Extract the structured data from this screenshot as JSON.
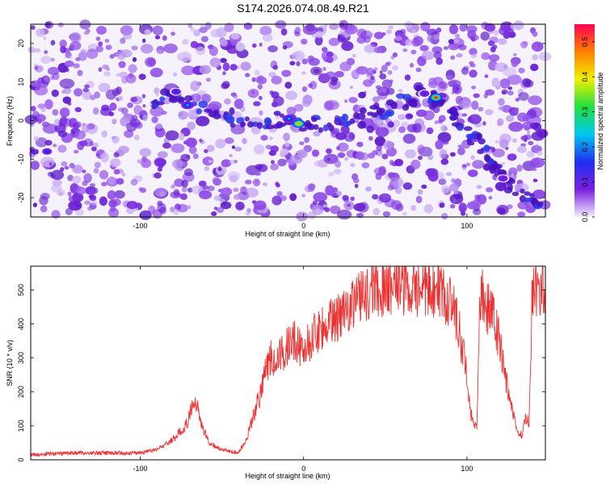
{
  "title": "S174.2026.074.08.49.R21",
  "chart_data": [
    {
      "type": "heatmap",
      "xlabel": "Height of straight line (km)",
      "ylabel": "Frequency (Hz)",
      "xlim": [
        -167,
        148
      ],
      "ylim": [
        -25,
        25
      ],
      "xticks": [
        "-100",
        "0",
        "100"
      ],
      "yticks": [
        "-20",
        "-10",
        "0",
        "10",
        "20"
      ],
      "colorbar": {
        "label": "Normalized spectral amplitude",
        "range": [
          0,
          0.55
        ],
        "ticks": [
          "0.0",
          "0.1",
          "0.2",
          "0.3",
          "0.4",
          "0.5"
        ],
        "colors": [
          "#f4eefc",
          "#7a20e0",
          "#2030f0",
          "#00c8f0",
          "#20e040",
          "#f0f000",
          "#ff8000",
          "#ff0050"
        ]
      },
      "ridge": [
        [
          -95,
          3
        ],
        [
          -80,
          7
        ],
        [
          -60,
          2
        ],
        [
          -40,
          0.5
        ],
        [
          -20,
          0
        ],
        [
          0,
          -0.5
        ],
        [
          20,
          -0.5
        ],
        [
          40,
          1
        ],
        [
          55,
          4
        ],
        [
          70,
          6.5
        ],
        [
          80,
          6
        ],
        [
          90,
          2
        ],
        [
          100,
          -3
        ],
        [
          110,
          -7
        ],
        [
          120,
          -14
        ],
        [
          135,
          -20
        ],
        [
          148,
          -23
        ]
      ],
      "hotspots": [
        [
          -3,
          -0.8,
          0.5
        ],
        [
          81,
          6.0,
          0.55
        ],
        [
          -9,
          0.5,
          0.2
        ],
        [
          -78,
          7.5,
          0.15
        ],
        [
          -71,
          4.0,
          0.2
        ],
        [
          -157,
          -8.0,
          0.15
        ],
        [
          74,
          7.0,
          0.12
        ],
        [
          122,
          -15,
          0.12
        ]
      ]
    },
    {
      "type": "line",
      "xlabel": "Height of straight line (km)",
      "ylabel": "SNR (10 * v/v)",
      "xlim": [
        -167,
        148
      ],
      "ylim": [
        0,
        570
      ],
      "xticks": [
        "-100",
        "0",
        "100"
      ],
      "yticks": [
        "0",
        "100",
        "200",
        "300",
        "400",
        "500"
      ],
      "color": "#f03030",
      "x": [
        -167,
        -140,
        -120,
        -100,
        -90,
        -80,
        -72,
        -66,
        -62,
        -58,
        -54,
        -50,
        -45,
        -40,
        -35,
        -30,
        -26,
        -24,
        -22,
        -20,
        -15,
        -10,
        -5,
        0,
        5,
        10,
        15,
        20,
        25,
        30,
        35,
        40,
        50,
        60,
        70,
        80,
        85,
        90,
        95,
        100,
        102,
        104,
        106,
        108,
        110,
        112,
        115,
        120,
        125,
        130,
        132,
        134,
        135,
        138,
        140,
        148
      ],
      "values": [
        15,
        20,
        20,
        20,
        30,
        60,
        100,
        180,
        100,
        50,
        40,
        30,
        25,
        20,
        60,
        140,
        200,
        250,
        280,
        300,
        300,
        330,
        350,
        320,
        360,
        390,
        400,
        420,
        440,
        470,
        480,
        500,
        510,
        515,
        510,
        500,
        480,
        470,
        390,
        250,
        150,
        100,
        90,
        460,
        480,
        450,
        430,
        350,
        200,
        100,
        80,
        70,
        120,
        110,
        500,
        510
      ]
    }
  ]
}
